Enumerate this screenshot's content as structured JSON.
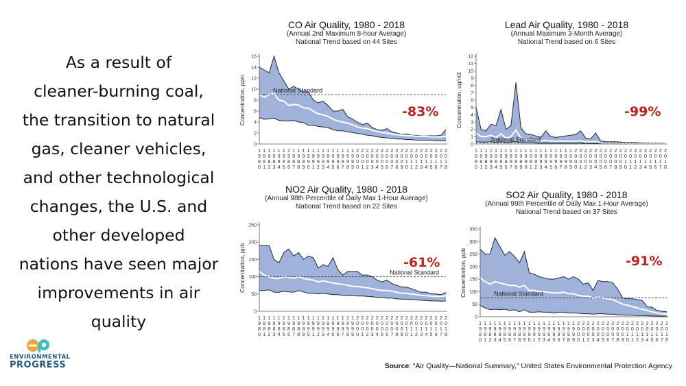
{
  "headline": "As a result of cleaner-burning coal, the transition to natural gas, cleaner vehicles, and other technological changes, the U.S. and other developed nations have seen major improvements in air quality",
  "headline_lines": [
    "As a result of",
    "cleaner-burning coal,",
    "the transition to natural",
    "gas, cleaner vehicles,",
    "and other technological",
    "changes, the U.S. and",
    "other developed",
    "nations have seen major",
    "improvements in air",
    "quality"
  ],
  "logo": {
    "mark": "ep",
    "line1": "ENVIRONMENTAL",
    "line2": "PROGRESS"
  },
  "source": {
    "label": "Source",
    "text": ": “Air Quality—National Summary,” United States Environmental Protection Agency"
  },
  "colors": {
    "band_fill": "#9fb3da",
    "band_edge": "#1b2536",
    "mean_line": "#ffffff",
    "standard_line": "#333333",
    "percent_text": "#c0211c",
    "logo_blue": "#1e5d86",
    "logo_orange": "#f2a33a",
    "logo_teal": "#3fbfc7"
  },
  "chart_data": [
    {
      "id": "co",
      "type": "area",
      "title": "CO Air Quality, 1980 - 2018",
      "subtitle": "(Annual 2nd Maximum 8-hour Average)",
      "subtitle2": "National Trend based on 44 Sites",
      "ylabel": "Concentration, ppm",
      "ylim": [
        0,
        16
      ],
      "yticks": [
        0,
        2,
        4,
        6,
        8,
        10,
        12,
        14,
        16
      ],
      "x_start": 1980,
      "x_end": 2018,
      "standard": 9,
      "standard_label": "National Standard",
      "change": "-83%",
      "upper": [
        14,
        13.5,
        13,
        16,
        13,
        11.5,
        10,
        10.5,
        10,
        9.5,
        9.5,
        8,
        7.5,
        7.8,
        7,
        6,
        6,
        6.3,
        5,
        4.5,
        4,
        3.5,
        3.8,
        3,
        2.6,
        2.5,
        2.8,
        2.2,
        2,
        1.7,
        1.8,
        1.6,
        1.6,
        1.5,
        1.5,
        1.5,
        1.5,
        1.6,
        2.6
      ],
      "mean": [
        9,
        8.5,
        9,
        9.2,
        8,
        7.8,
        7,
        7.2,
        7.1,
        6.6,
        6.5,
        6,
        5.5,
        5.3,
        5,
        4.5,
        4.2,
        4,
        3.8,
        3.5,
        3.1,
        2.9,
        2.8,
        2.5,
        2.3,
        2.1,
        2,
        1.8,
        1.7,
        1.6,
        1.5,
        1.5,
        1.4,
        1.4,
        1.4,
        1.3,
        1.3,
        1.3,
        1.4
      ],
      "lower": [
        4.8,
        4.5,
        4.6,
        4.7,
        4.3,
        4.2,
        4.2,
        4.3,
        4,
        3.9,
        3.4,
        3.4,
        3.2,
        3.1,
        3,
        2.6,
        2.4,
        2.4,
        2.2,
        2.1,
        1.9,
        1.8,
        1.6,
        1.5,
        1.3,
        1.2,
        1.1,
        1,
        0.9,
        0.9,
        0.8,
        0.8,
        0.7,
        0.7,
        0.7,
        0.7,
        0.6,
        0.6,
        0.6
      ]
    },
    {
      "id": "lead",
      "type": "area",
      "title": "Lead Air Quality, 1980 - 2018",
      "subtitle": "(Annual Maximum 3-Month Average)",
      "subtitle2": "National Trend based on 6 Sites",
      "ylabel": "Concentration, ug/m3",
      "ylim": [
        0,
        12
      ],
      "yticks": [
        0,
        1,
        2,
        3,
        4,
        5,
        6,
        7,
        8,
        9,
        10,
        11,
        12
      ],
      "x_start": 1980,
      "x_end": 2018,
      "standard": 0.15,
      "standard_label": "National Standard",
      "change": "-99%",
      "upper": [
        5,
        2,
        1.8,
        2.7,
        2.5,
        4.7,
        2,
        2.5,
        8.4,
        2.2,
        1.4,
        1.3,
        1.1,
        0.9,
        1.8,
        1,
        0.9,
        1,
        1.1,
        1.2,
        1.3,
        1.8,
        0.8,
        0.7,
        1.5,
        0.4,
        0.3,
        0.3,
        0.3,
        0.25,
        0.2,
        0.2,
        0.2,
        0.15,
        0.15,
        0.1,
        0.1,
        0.1,
        0.1
      ],
      "mean": [
        1.5,
        1,
        1,
        1.2,
        0.9,
        1.4,
        0.8,
        1,
        1.9,
        0.8,
        0.6,
        0.6,
        0.5,
        0.4,
        0.5,
        0.4,
        0.4,
        0.4,
        0.4,
        0.4,
        0.4,
        0.45,
        0.3,
        0.3,
        0.35,
        0.15,
        0.12,
        0.12,
        0.1,
        0.1,
        0.08,
        0.07,
        0.06,
        0.05,
        0.05,
        0.04,
        0.04,
        0.04,
        0.04
      ],
      "lower": [
        0.3,
        0.25,
        0.25,
        0.3,
        0.2,
        0.3,
        0.2,
        0.25,
        0.3,
        0.2,
        0.15,
        0.15,
        0.12,
        0.1,
        0.12,
        0.1,
        0.1,
        0.1,
        0.1,
        0.1,
        0.1,
        0.1,
        0.06,
        0.06,
        0.07,
        0.03,
        0.02,
        0.02,
        0.02,
        0.02,
        0.01,
        0.01,
        0.01,
        0.01,
        0.01,
        0.01,
        0.01,
        0.01,
        0.01
      ]
    },
    {
      "id": "no2",
      "type": "area",
      "title": "NO2 Air Quality, 1980 - 2018",
      "subtitle": "(Annual 98th Percentile of Daily Max 1-Hour Average)",
      "subtitle2": "National Trend based on 22 Sites",
      "ylabel": "Concentration, ppb",
      "ylim": [
        0,
        250
      ],
      "yticks": [
        0,
        50,
        100,
        150,
        200,
        250
      ],
      "x_start": 1980,
      "x_end": 2018,
      "standard": 100,
      "standard_label": "National Standard",
      "change": "-61%",
      "upper": [
        190,
        190,
        190,
        150,
        140,
        170,
        180,
        160,
        170,
        150,
        160,
        155,
        125,
        135,
        130,
        155,
        120,
        105,
        115,
        115,
        115,
        105,
        105,
        100,
        90,
        85,
        90,
        80,
        75,
        70,
        70,
        65,
        60,
        55,
        55,
        50,
        50,
        48,
        55
      ],
      "mean": [
        115,
        105,
        100,
        95,
        95,
        100,
        98,
        95,
        100,
        95,
        92,
        90,
        85,
        88,
        85,
        82,
        80,
        78,
        75,
        72,
        72,
        70,
        68,
        65,
        62,
        60,
        60,
        58,
        55,
        52,
        52,
        50,
        48,
        46,
        45,
        44,
        43,
        43,
        45
      ],
      "lower": [
        60,
        60,
        62,
        55,
        55,
        58,
        56,
        55,
        60,
        56,
        52,
        52,
        50,
        52,
        50,
        48,
        48,
        46,
        45,
        45,
        44,
        44,
        43,
        42,
        40,
        40,
        38,
        38,
        36,
        35,
        35,
        34,
        33,
        32,
        31,
        30,
        30,
        29,
        30
      ]
    },
    {
      "id": "so2",
      "type": "area",
      "title": "SO2 Air Quality, 1980 - 2018",
      "subtitle": "(Annual 99th Percentile of Daily Max 1-Hour Average)",
      "subtitle2": "National Trend based on 37 Sites",
      "ylabel": "Concentration, ppb",
      "ylim": [
        0,
        350
      ],
      "yticks": [
        0,
        50,
        100,
        150,
        200,
        250,
        300,
        350
      ],
      "x_start": 1980,
      "x_end": 2018,
      "standard": 75,
      "standard_label": "National Standard",
      "change": "-91%",
      "upper": [
        270,
        250,
        250,
        315,
        280,
        245,
        260,
        240,
        215,
        260,
        175,
        170,
        160,
        155,
        150,
        150,
        155,
        160,
        150,
        160,
        150,
        130,
        135,
        105,
        145,
        140,
        140,
        135,
        110,
        75,
        72,
        72,
        68,
        65,
        40,
        38,
        25,
        22,
        20
      ],
      "mean": [
        155,
        140,
        130,
        140,
        135,
        130,
        125,
        125,
        118,
        125,
        105,
        105,
        100,
        100,
        97,
        95,
        95,
        98,
        92,
        92,
        85,
        82,
        82,
        75,
        78,
        75,
        72,
        68,
        60,
        50,
        46,
        40,
        35,
        30,
        25,
        20,
        15,
        12,
        10
      ],
      "lower": [
        45,
        35,
        28,
        30,
        28,
        30,
        25,
        28,
        20,
        28,
        18,
        18,
        20,
        18,
        18,
        15,
        18,
        18,
        15,
        15,
        14,
        12,
        12,
        10,
        12,
        12,
        10,
        10,
        8,
        7,
        6,
        6,
        5,
        5,
        4,
        3,
        3,
        2,
        2
      ]
    }
  ]
}
